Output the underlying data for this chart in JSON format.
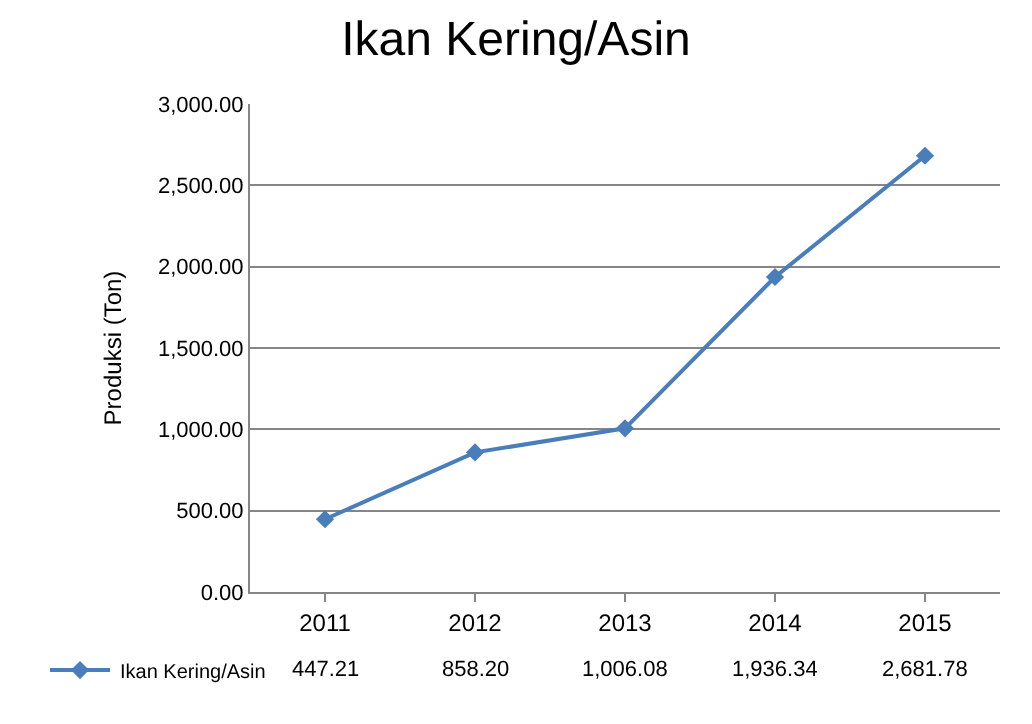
{
  "chart_data": {
    "type": "line",
    "title": "Ikan Kering/Asin",
    "ylabel": "Produksi (Ton)",
    "categories": [
      "2011",
      "2012",
      "2013",
      "2014",
      "2015"
    ],
    "series": [
      {
        "name": "Ikan Kering/Asin",
        "color": "#4a7ebb",
        "values": [
          447.21,
          858.2,
          1006.08,
          1936.34,
          2681.78
        ],
        "value_labels": [
          "447.21",
          "858.20",
          "1,006.08",
          "1,936.34",
          "2,681.78"
        ]
      }
    ],
    "ylim": [
      0,
      3000
    ],
    "yticks": [
      {
        "value": 0,
        "label": "0.00"
      },
      {
        "value": 500,
        "label": "500.00"
      },
      {
        "value": 1000,
        "label": "1,000.00"
      },
      {
        "value": 1500,
        "label": "1,500.00"
      },
      {
        "value": 2000,
        "label": "2,000.00"
      },
      {
        "value": 2500,
        "label": "2,500.00"
      },
      {
        "value": 3000,
        "label": "3,000.00"
      }
    ],
    "grid": "y",
    "legend": "bottom",
    "marker": "diamond",
    "line_style": "solid"
  }
}
